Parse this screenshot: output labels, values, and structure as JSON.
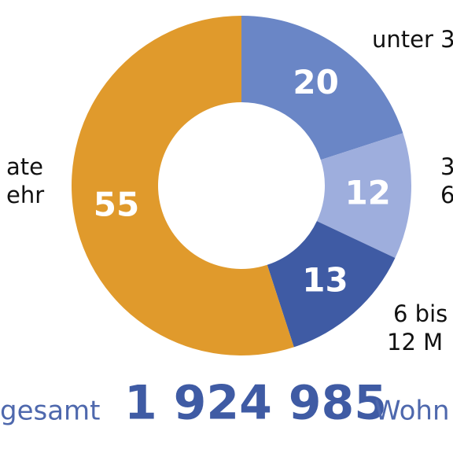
{
  "chart_data": {
    "type": "pie",
    "categories": [
      [
        "unter 3"
      ],
      [
        "3",
        "6"
      ],
      [
        "6 bis",
        "12 M"
      ],
      [
        "ate",
        "ehr"
      ]
    ],
    "values": [
      20,
      12,
      13,
      55
    ],
    "colors": [
      "#6a86c6",
      "#9eaedd",
      "#3f5ba4",
      "#e09a2c"
    ],
    "total_prefix": "gesamt",
    "total": "1 924 985",
    "total_suffix": "Wohn"
  }
}
